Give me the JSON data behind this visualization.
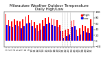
{
  "title": "Milwaukee Weather Outdoor Temperature\nDaily High/Low",
  "background_color": "#ffffff",
  "bar_color_high": "#ff0000",
  "bar_color_low": "#0000ff",
  "ylim": [
    -20,
    100
  ],
  "yticks": [
    -20,
    0,
    20,
    40,
    60,
    80,
    100
  ],
  "num_days": 31,
  "highs": [
    95,
    72,
    68,
    74,
    70,
    68,
    75,
    85,
    88,
    72,
    65,
    55,
    60,
    72,
    80,
    82,
    78,
    75,
    72,
    55,
    35,
    38,
    42,
    70,
    72,
    40,
    45,
    55,
    50,
    45,
    75
  ],
  "lows": [
    55,
    52,
    48,
    55,
    50,
    45,
    52,
    60,
    62,
    50,
    45,
    35,
    40,
    52,
    58,
    62,
    55,
    52,
    48,
    35,
    10,
    18,
    22,
    48,
    50,
    18,
    22,
    35,
    30,
    28,
    52
  ],
  "dashed_line_x": [
    19.5,
    20.5,
    21.5,
    22.5
  ],
  "title_fontsize": 4.0,
  "tick_fontsize": 2.8,
  "legend_fontsize": 3.2,
  "legend_dot_high": "#ff0000",
  "legend_dot_low": "#0000ff"
}
